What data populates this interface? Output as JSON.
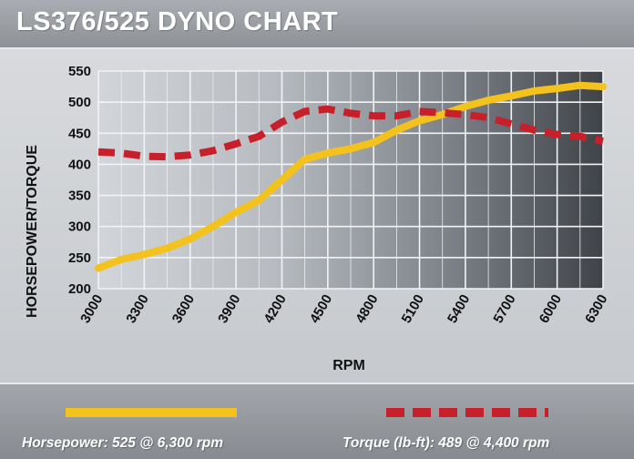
{
  "header": {
    "title": "LS376/525 DYNO CHART"
  },
  "legend": {
    "hp_label": "Horsepower: 525 @ 6,300 rpm",
    "tq_label": "Torque (lb-ft): 489 @ 4,400 rpm",
    "hp_color": "#f4c21c",
    "tq_color": "#c8202a"
  },
  "chart_data": {
    "type": "line",
    "title": "LS376/525 DYNO CHART",
    "xlabel": "RPM",
    "ylabel": "HORSEPOWER/TORQUE",
    "xlim": [
      3000,
      6300
    ],
    "ylim": [
      200,
      550
    ],
    "x_ticks": [
      "3000",
      "3300",
      "3600",
      "3900",
      "4200",
      "4500",
      "4800",
      "5100",
      "5400",
      "5700",
      "6000",
      "6300"
    ],
    "y_ticks": [
      "200",
      "250",
      "300",
      "350",
      "400",
      "450",
      "500",
      "550"
    ],
    "grid": true,
    "series": [
      {
        "name": "Horsepower",
        "style": "solid",
        "color": "#f4c21c",
        "x": [
          3000,
          3150,
          3300,
          3450,
          3600,
          3750,
          3900,
          4050,
          4200,
          4350,
          4500,
          4650,
          4800,
          4950,
          5100,
          5250,
          5400,
          5550,
          5700,
          5850,
          6000,
          6150,
          6300
        ],
        "y": [
          233,
          247,
          255,
          265,
          280,
          300,
          323,
          342,
          375,
          408,
          418,
          425,
          435,
          455,
          470,
          480,
          493,
          503,
          510,
          518,
          522,
          527,
          525
        ]
      },
      {
        "name": "Torque",
        "style": "dashed",
        "color": "#c8202a",
        "x": [
          3000,
          3150,
          3300,
          3450,
          3600,
          3750,
          3900,
          4050,
          4200,
          4350,
          4500,
          4650,
          4800,
          4950,
          5100,
          5250,
          5400,
          5550,
          5700,
          5850,
          6000,
          6150,
          6300
        ],
        "y": [
          420,
          418,
          413,
          412,
          415,
          422,
          433,
          445,
          468,
          485,
          489,
          482,
          478,
          478,
          485,
          483,
          480,
          475,
          465,
          455,
          448,
          445,
          437
        ]
      }
    ]
  }
}
